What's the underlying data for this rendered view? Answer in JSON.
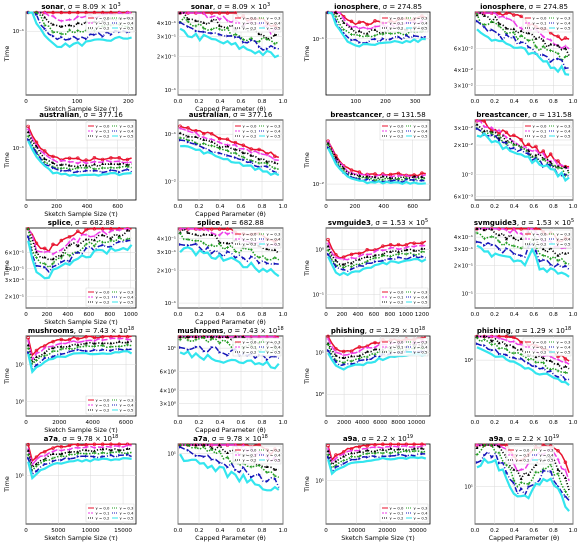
{
  "colors": [
    "#e8112d",
    "#ee3be8",
    "#000000",
    "#1e9b1e",
    "#1515b8",
    "#33e5ee"
  ],
  "chart_data": [
    {
      "type": "line",
      "title_name": "sonar",
      "title_sigma": "8.09 × 10",
      "title_exp": "3",
      "xlabel": "Sketch Sample Size (τ)",
      "ylabel": "Time",
      "yscale": "log",
      "ymin": 0.01,
      "ymax": 0.2,
      "xmin": 0,
      "xmax": 215,
      "xticks": [
        0,
        100,
        200
      ],
      "xtick_labels": [
        "0",
        "100",
        "200"
      ],
      "yticks": [
        0.1
      ],
      "ytick_labels": [
        "10⁻¹"
      ],
      "shape": "kdecay",
      "base": 0.045,
      "endmul": 1.8,
      "spread": 3.2,
      "legend": "top-right"
    },
    {
      "type": "line",
      "title_name": "sonar",
      "title_sigma": "8.09 × 10",
      "title_exp": "3",
      "xlabel": "Capped Parameter (θ)",
      "ylabel": "",
      "yscale": "log",
      "ymin": 0.09,
      "ymax": 0.5,
      "xmin": 0,
      "xmax": 1,
      "xticks": [
        0,
        0.2,
        0.4,
        0.6,
        0.8,
        1
      ],
      "xtick_labels": [
        "0.0",
        "0.2",
        "0.4",
        "0.6",
        "0.8",
        "1.0"
      ],
      "yticks": [
        0.1,
        0.2,
        0.3,
        0.4
      ],
      "ytick_labels": [
        "10⁻¹",
        "2×10⁻¹",
        "3×10⁻¹",
        "4×10⁻¹"
      ],
      "shape": "cdecay",
      "base": 0.33,
      "endmul": 0.6,
      "spread": 1.9,
      "legend": "top-right"
    },
    {
      "type": "line",
      "title_name": "ionosphere",
      "title_sigma": "274.85",
      "title_exp": "",
      "xlabel": "",
      "ylabel": "Time",
      "yscale": "log",
      "ymin": 0.01,
      "ymax": 0.3,
      "xmin": 0,
      "xmax": 350,
      "xticks": [
        100,
        200,
        300
      ],
      "xtick_labels": [
        "100",
        "200",
        "300"
      ],
      "yticks": [
        0.1
      ],
      "ytick_labels": [
        "10⁻¹"
      ],
      "shape": "kdecay",
      "base": 0.06,
      "endmul": 1.6,
      "spread": 2.5,
      "legend": "top-right"
    },
    {
      "type": "line",
      "title_name": "ionosphere",
      "title_sigma": "274.85",
      "title_exp": "",
      "xlabel": "",
      "ylabel": "",
      "yscale": "log",
      "ymin": 0.025,
      "ymax": 0.12,
      "xmin": 0,
      "xmax": 1,
      "xticks": [
        0,
        0.2,
        0.4,
        0.6,
        0.8,
        1
      ],
      "xtick_labels": [
        "0.0",
        "0.2",
        "0.4",
        "0.6",
        "0.8",
        "1.0"
      ],
      "yticks": [
        0.03,
        0.04,
        0.06
      ],
      "ytick_labels": [
        "3×10⁻²",
        "4×10⁻²",
        "6×10⁻²"
      ],
      "shape": "cdecay",
      "base": 0.085,
      "endmul": 0.45,
      "spread": 1.8,
      "legend": "top-right"
    },
    {
      "type": "line",
      "title_name": "australian",
      "title_sigma": "377.16",
      "title_exp": "",
      "xlabel": "Sketch Sample Size (τ)",
      "ylabel": "Time",
      "yscale": "log",
      "ymin": 0.005,
      "ymax": 0.5,
      "xmin": 0,
      "xmax": 720,
      "xticks": [
        0,
        200,
        400,
        600
      ],
      "xtick_labels": [
        "0",
        "200",
        "400",
        "600"
      ],
      "yticks": [
        0.1
      ],
      "ytick_labels": [
        "10⁻¹"
      ],
      "shape": "kdecay",
      "base": 0.02,
      "endmul": 1.15,
      "spread": 2.4,
      "legend": "top-right"
    },
    {
      "type": "line",
      "title_name": "australian",
      "title_sigma": "377.16",
      "title_exp": "",
      "xlabel": "Capped Parameter (θ)",
      "ylabel": "",
      "yscale": "log",
      "ymin": 0.004,
      "ymax": 0.2,
      "xmin": 0,
      "xmax": 1,
      "xticks": [
        0,
        0.2,
        0.4,
        0.6,
        0.8,
        1
      ],
      "xtick_labels": [
        "0.0",
        "0.2",
        "0.4",
        "0.6",
        "0.8",
        "1.0"
      ],
      "yticks": [
        0.01,
        0.1
      ],
      "ytick_labels": [
        "10⁻²",
        "10⁻¹"
      ],
      "shape": "cdecay",
      "base": 0.06,
      "endmul": 0.22,
      "spread": 2.6,
      "legend": "top-right"
    },
    {
      "type": "line",
      "title_name": "breastcancer",
      "title_sigma": "131.58",
      "title_exp": "",
      "xlabel": "",
      "ylabel": "Time",
      "yscale": "log",
      "ymin": 0.004,
      "ymax": 0.4,
      "xmin": 0,
      "xmax": 720,
      "xticks": [
        0,
        200,
        400,
        600
      ],
      "xtick_labels": [
        "0",
        "200",
        "400",
        "600"
      ],
      "yticks": [
        0.01
      ],
      "ytick_labels": [
        "10⁻²"
      ],
      "shape": "kdecay",
      "base": 0.011,
      "endmul": 1.0,
      "spread": 1.6,
      "legend": "top-right"
    },
    {
      "type": "line",
      "title_name": "breastcancer",
      "title_sigma": "131.58",
      "title_exp": "",
      "xlabel": "",
      "ylabel": "",
      "yscale": "log",
      "ymin": 0.0055,
      "ymax": 0.036,
      "xmin": 0,
      "xmax": 1,
      "xticks": [
        0,
        0.2,
        0.4,
        0.6,
        0.8,
        1
      ],
      "xtick_labels": [
        "0.0",
        "0.2",
        "0.4",
        "0.6",
        "0.8",
        "1.0"
      ],
      "yticks": [
        0.006,
        0.01,
        0.02,
        0.03
      ],
      "ytick_labels": [
        "6×10⁻³",
        "10⁻²",
        "2×10⁻²",
        "3×10⁻²"
      ],
      "shape": "cdecay",
      "base": 0.027,
      "endmul": 0.33,
      "spread": 1.35,
      "legend": "top-right"
    },
    {
      "type": "line",
      "title_name": "splice",
      "title_sigma": "682.88",
      "title_exp": "",
      "xlabel": "Sketch Sample Size (τ)",
      "ylabel": "Time",
      "yscale": "log",
      "ymin": 0.15,
      "ymax": 1.1,
      "xmin": 0,
      "xmax": 1050,
      "xticks": [
        0,
        200,
        400,
        600,
        800,
        1000
      ],
      "xtick_labels": [
        "0",
        "200",
        "400",
        "600",
        "800",
        "1000"
      ],
      "yticks": [
        0.2,
        0.3,
        0.4,
        0.6
      ],
      "ytick_labels": [
        "2×10⁻¹",
        "3×10⁻¹",
        "4×10⁻¹",
        "6×10⁻¹"
      ],
      "shape": "kgrow",
      "base": 0.42,
      "endmul": 1.6,
      "spread": 1.9,
      "legend": "bottom-right"
    },
    {
      "type": "line",
      "title_name": "splice",
      "title_sigma": "682.88",
      "title_exp": "",
      "xlabel": "Capped Parameter (θ)",
      "ylabel": "",
      "yscale": "log",
      "ymin": 0.09,
      "ymax": 0.5,
      "xmin": 0,
      "xmax": 1,
      "xticks": [
        0,
        0.2,
        0.4,
        0.6,
        0.8,
        1
      ],
      "xtick_labels": [
        "0.0",
        "0.2",
        "0.4",
        "0.6",
        "0.8",
        "1.0"
      ],
      "yticks": [
        0.1,
        0.2,
        0.3,
        0.4
      ],
      "ytick_labels": [
        "10⁻¹",
        "2×10⁻¹",
        "3×10⁻¹",
        "4×10⁻¹"
      ],
      "shape": "cdecay",
      "base": 0.32,
      "endmul": 0.6,
      "spread": 2.0,
      "legend": "top-right"
    },
    {
      "type": "line",
      "title_name": "svmguide3",
      "title_sigma": "1.53 × 10",
      "title_exp": "5",
      "xlabel": "",
      "ylabel": "Time",
      "yscale": "log",
      "ymin": 0.05,
      "ymax": 3,
      "xmin": 0,
      "xmax": 1300,
      "xticks": [
        0,
        200,
        400,
        600,
        800,
        1000,
        1200
      ],
      "xtick_labels": [
        "0",
        "200",
        "400",
        "600",
        "800",
        "1000",
        "1200"
      ],
      "yticks": [
        0.1,
        1
      ],
      "ytick_labels": [
        "10⁻¹",
        "10⁰"
      ],
      "shape": "kgrow",
      "base": 0.35,
      "endmul": 1.7,
      "spread": 2.4,
      "legend": "bottom-right"
    },
    {
      "type": "line",
      "title_name": "svmguide3",
      "title_sigma": "1.53 × 10",
      "title_exp": "5",
      "xlabel": "",
      "ylabel": "",
      "yscale": "log",
      "ymin": 0.07,
      "ymax": 0.5,
      "xmin": 0,
      "xmax": 1,
      "xticks": [
        0,
        0.2,
        0.4,
        0.6,
        0.8,
        1
      ],
      "xtick_labels": [
        "0.0",
        "0.2",
        "0.4",
        "0.6",
        "0.8",
        "1.0"
      ],
      "yticks": [
        0.1,
        0.2,
        0.3,
        0.4
      ],
      "ytick_labels": [
        "10⁻¹",
        "2×10⁻¹",
        "3×10⁻¹",
        "4×10⁻¹"
      ],
      "shape": "cbump",
      "base": 0.3,
      "endmul": 0.5,
      "spread": 2.4,
      "legend": "top-right"
    },
    {
      "type": "line",
      "title_name": "mushrooms",
      "title_sigma": "7.43 × 10",
      "title_exp": "18",
      "xlabel": "Sketch Sample Size (τ)",
      "ylabel": "Time",
      "yscale": "log",
      "ymin": 0.4,
      "ymax": 60,
      "xmin": 0,
      "xmax": 6600,
      "xticks": [
        0,
        2000,
        4000,
        6000
      ],
      "xtick_labels": [
        "0",
        "2000",
        "4000",
        "6000"
      ],
      "yticks": [
        1,
        10
      ],
      "ytick_labels": [
        "10⁰",
        "10¹"
      ],
      "shape": "ksat",
      "base": 22,
      "endmul": 1,
      "spread": 2.8,
      "legend": "bottom-right"
    },
    {
      "type": "line",
      "title_name": "mushrooms",
      "title_sigma": "7.43 × 10",
      "title_exp": "18",
      "xlabel": "Capped Parameter (θ)",
      "ylabel": "",
      "yscale": "log",
      "ymin": 2.3,
      "ymax": 13,
      "xmin": 0,
      "xmax": 1,
      "xticks": [
        0,
        0.2,
        0.4,
        0.6,
        0.8,
        1
      ],
      "xtick_labels": [
        "0.0",
        "0.2",
        "0.4",
        "0.6",
        "0.8",
        "1.0"
      ],
      "yticks": [
        3,
        4,
        6,
        10
      ],
      "ytick_labels": [
        "3×10⁰",
        "4×10⁰",
        "6×10⁰",
        "10¹"
      ],
      "shape": "cdecay",
      "base": 9,
      "endmul": 0.75,
      "spread": 2.3,
      "legend": "top-right"
    },
    {
      "type": "line",
      "title_name": "phishing",
      "title_sigma": "1.29 × 10",
      "title_exp": "18",
      "xlabel": "",
      "ylabel": "Time",
      "yscale": "log",
      "ymin": 0.3,
      "ymax": 25,
      "xmin": 0,
      "xmax": 11500,
      "xticks": [
        0,
        2000,
        4000,
        6000,
        8000,
        10000
      ],
      "xtick_labels": [
        "0",
        "2000",
        "4000",
        "6000",
        "8000",
        "10000"
      ],
      "yticks": [
        1,
        10
      ],
      "ytick_labels": [
        "10⁰",
        "10¹"
      ],
      "shape": "kgrow",
      "base": 5,
      "endmul": 1.8,
      "spread": 2.6,
      "legend": "top-right"
    },
    {
      "type": "line",
      "title_name": "phishing",
      "title_sigma": "1.29 × 10",
      "title_exp": "18",
      "xlabel": "",
      "ylabel": "",
      "yscale": "log",
      "ymin": 0.12,
      "ymax": 2.5,
      "xmin": 0,
      "xmax": 1,
      "xticks": [
        0,
        0.2,
        0.4,
        0.6,
        0.8,
        1
      ],
      "xtick_labels": [
        "0.0",
        "0.2",
        "0.4",
        "0.6",
        "0.8",
        "1.0"
      ],
      "yticks": [
        1
      ],
      "ytick_labels": [
        "10⁰"
      ],
      "shape": "cdecay",
      "base": 1.6,
      "endmul": 0.25,
      "spread": 2.5,
      "legend": "top-right"
    },
    {
      "type": "line",
      "title_name": "a7a",
      "title_sigma": "9.78 × 10",
      "title_exp": "18",
      "xlabel": "Sketch Sample Size (τ)",
      "ylabel": "Time",
      "yscale": "log",
      "ymin": 0.4,
      "ymax": 80,
      "xmin": 0,
      "xmax": 17000,
      "xticks": [
        0,
        5000,
        10000,
        15000
      ],
      "xtick_labels": [
        "0",
        "5000",
        "10000",
        "15000"
      ],
      "yticks": [
        10
      ],
      "ytick_labels": [
        "10¹"
      ],
      "shape": "ksat",
      "base": 30,
      "endmul": 1,
      "spread": 3.0,
      "legend": "bottom-right"
    },
    {
      "type": "line",
      "title_name": "a7a",
      "title_sigma": "9.78 × 10",
      "title_exp": "18",
      "xlabel": "Capped Parameter (θ)",
      "ylabel": "",
      "yscale": "log",
      "ymin": 2.5,
      "ymax": 12,
      "xmin": 0,
      "xmax": 1,
      "xticks": [
        0,
        0.2,
        0.4,
        0.6,
        0.8,
        1
      ],
      "xtick_labels": [
        "0.0",
        "0.2",
        "0.4",
        "0.6",
        "0.8",
        "1.0"
      ],
      "yticks": [
        10
      ],
      "ytick_labels": [
        "10¹"
      ],
      "shape": "cdecay",
      "base": 9.5,
      "endmul": 0.5,
      "spread": 2.1,
      "legend": "top-right"
    },
    {
      "type": "line",
      "title_name": "a9a",
      "title_sigma": "2.2 × 10",
      "title_exp": "19",
      "xlabel": "Sketch Sample Size (τ)",
      "ylabel": "Time",
      "yscale": "log",
      "ymin": 0.4,
      "ymax": 150,
      "xmin": 0,
      "xmax": 34000,
      "xticks": [
        0,
        10000,
        20000,
        30000
      ],
      "xtick_labels": [
        "0",
        "10000",
        "20000",
        "30000"
      ],
      "yticks": [
        10
      ],
      "ytick_labels": [
        "10¹"
      ],
      "shape": "ksat",
      "base": 55,
      "endmul": 1,
      "spread": 3.0,
      "legend": "bottom-right"
    },
    {
      "type": "line",
      "title_name": "a9a",
      "title_sigma": "2.2 × 10",
      "title_exp": "19",
      "xlabel": "Capped Parameter (θ)",
      "ylabel": "",
      "yscale": "log",
      "ymin": 5,
      "ymax": 22,
      "xmin": 0,
      "xmax": 1,
      "xticks": [
        0,
        0.2,
        0.4,
        0.6,
        0.8,
        1
      ],
      "xtick_labels": [
        "0.0",
        "0.2",
        "0.4",
        "0.6",
        "0.8",
        "1.0"
      ],
      "yticks": [
        10
      ],
      "ytick_labels": [
        "10¹"
      ],
      "shape": "cwave",
      "base": 14,
      "endmul": 0.55,
      "spread": 2.0,
      "legend": "top-center"
    }
  ],
  "legend_labels": [
    "γ = 0.0",
    "γ = 0.1",
    "γ = 0.2",
    "γ = 0.3",
    "γ = 0.4",
    "γ = 0.5"
  ]
}
